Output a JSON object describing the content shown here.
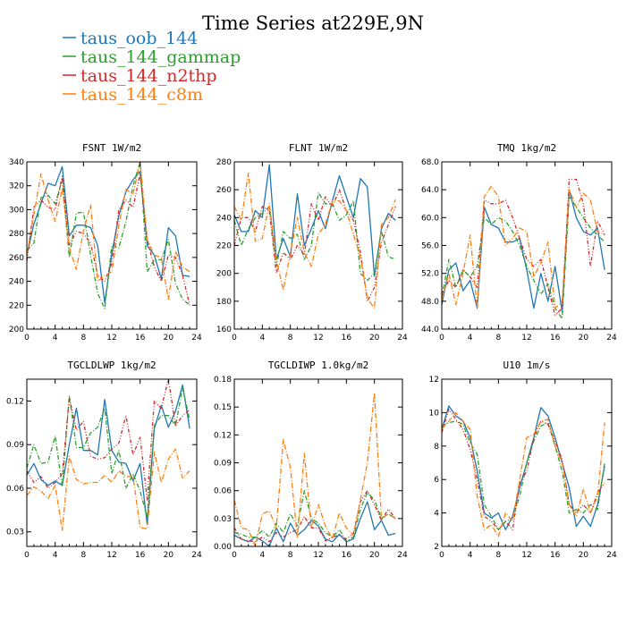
{
  "figure": {
    "title": "Time Series at229E,9N"
  },
  "legend": [
    {
      "name": "taus_oob_144",
      "color": "#1f77b4"
    },
    {
      "name": "taus_144_gammap",
      "color": "#2ca02c"
    },
    {
      "name": "taus_144_n2thp",
      "color": "#d62728"
    },
    {
      "name": "taus_144_c8m",
      "color": "#ff7f0e"
    }
  ],
  "chart_data": [
    {
      "type": "line",
      "title": "FSNT   1W/m2",
      "xlim": [
        0,
        24
      ],
      "ylim": [
        200,
        340
      ],
      "xticks": [
        0,
        4,
        8,
        12,
        16,
        20,
        24
      ],
      "yticks": [
        "200",
        "220",
        "240",
        "260",
        "280",
        "300",
        "320",
        "340"
      ],
      "x": [
        0,
        1,
        2,
        3,
        4,
        5,
        6,
        7,
        8,
        9,
        10,
        11,
        12,
        13,
        14,
        15,
        16,
        17,
        18,
        19,
        20,
        21,
        22,
        23
      ],
      "series": [
        {
          "name": "taus_oob_144",
          "values": [
            262,
            288,
            305,
            322,
            320,
            336,
            278,
            287,
            287,
            285,
            270,
            222,
            263,
            295,
            315,
            325,
            332,
            270,
            262,
            242,
            285,
            278,
            245,
            244
          ]
        },
        {
          "name": "taus_144_gammap",
          "values": [
            266,
            272,
            310,
            312,
            305,
            325,
            260,
            297,
            298,
            262,
            230,
            217,
            270,
            268,
            290,
            320,
            340,
            248,
            258,
            258,
            275,
            238,
            225,
            220
          ]
        },
        {
          "name": "taus_144_n2thp",
          "values": [
            257,
            302,
            308,
            302,
            300,
            328,
            270,
            282,
            280,
            272,
            245,
            240,
            255,
            300,
            308,
            302,
            330,
            275,
            252,
            240,
            262,
            260,
            245,
            220
          ]
        },
        {
          "name": "taus_144_c8m",
          "values": [
            262,
            296,
            330,
            308,
            290,
            318,
            268,
            250,
            282,
            304,
            240,
            245,
            248,
            287,
            317,
            313,
            340,
            275,
            262,
            260,
            225,
            265,
            252,
            248
          ]
        }
      ]
    },
    {
      "type": "line",
      "title": "FLNT   1W/m2",
      "xlim": [
        0,
        24
      ],
      "ylim": [
        160,
        280
      ],
      "xticks": [
        0,
        4,
        8,
        12,
        16,
        20,
        24
      ],
      "yticks": [
        "160",
        "180",
        "200",
        "220",
        "240",
        "260",
        "280"
      ],
      "x": [
        0,
        1,
        2,
        3,
        4,
        5,
        6,
        7,
        8,
        9,
        10,
        11,
        12,
        13,
        14,
        15,
        16,
        17,
        18,
        19,
        20,
        21,
        22,
        23
      ],
      "series": [
        {
          "name": "taus_oob_144",
          "values": [
            242,
            230,
            230,
            245,
            240,
            278,
            210,
            225,
            212,
            257,
            220,
            232,
            245,
            232,
            252,
            270,
            255,
            240,
            268,
            262,
            198,
            232,
            243,
            238
          ]
        },
        {
          "name": "taus_144_gammap",
          "values": [
            238,
            220,
            232,
            240,
            243,
            248,
            205,
            230,
            225,
            228,
            210,
            220,
            258,
            250,
            250,
            238,
            242,
            252,
            200,
            195,
            200,
            230,
            212,
            210
          ]
        },
        {
          "name": "taus_144_n2thp",
          "values": [
            220,
            240,
            240,
            230,
            248,
            245,
            200,
            215,
            210,
            220,
            213,
            250,
            238,
            255,
            248,
            260,
            245,
            238,
            215,
            180,
            190,
            222,
            235,
            248
          ]
        },
        {
          "name": "taus_144_c8m",
          "values": [
            248,
            238,
            272,
            223,
            225,
            250,
            210,
            188,
            215,
            240,
            215,
            205,
            228,
            235,
            252,
            252,
            245,
            228,
            212,
            182,
            175,
            235,
            240,
            253
          ]
        }
      ]
    },
    {
      "type": "line",
      "title": "TMQ   1kg/m2",
      "xlim": [
        0,
        24
      ],
      "ylim": [
        44,
        68
      ],
      "xticks": [
        0,
        4,
        8,
        12,
        16,
        20,
        24
      ],
      "yticks": [
        "44.0",
        "48.0",
        "52.0",
        "56.0",
        "60.0",
        "64.0",
        "68.0"
      ],
      "x": [
        0,
        1,
        2,
        3,
        4,
        5,
        6,
        7,
        8,
        9,
        10,
        11,
        12,
        13,
        14,
        15,
        16,
        17,
        18,
        19,
        20,
        21,
        22,
        23
      ],
      "series": [
        {
          "name": "taus_oob_144",
          "values": [
            47.5,
            52.5,
            53.5,
            49.5,
            51.0,
            47.0,
            61.5,
            59.0,
            58.5,
            56.5,
            56.5,
            57.0,
            52.5,
            47.0,
            52.0,
            48.0,
            53.0,
            46.5,
            64.0,
            60.0,
            58.0,
            57.5,
            58.5,
            52.5
          ]
        },
        {
          "name": "taus_144_gammap",
          "values": [
            48.5,
            54.0,
            50.0,
            52.5,
            51.5,
            53.0,
            60.0,
            59.0,
            60.0,
            59.5,
            58.0,
            56.0,
            53.0,
            51.0,
            49.0,
            50.5,
            47.0,
            45.5,
            63.0,
            61.5,
            60.0,
            58.5,
            57.5,
            56.5
          ]
        },
        {
          "name": "taus_144_n2thp",
          "values": [
            49.0,
            51.0,
            50.0,
            52.5,
            51.5,
            50.0,
            62.5,
            62.0,
            62.0,
            62.5,
            60.0,
            57.0,
            54.0,
            53.0,
            54.0,
            50.0,
            46.0,
            47.0,
            65.5,
            65.5,
            62.0,
            53.0,
            59.5,
            57.5
          ]
        },
        {
          "name": "taus_144_c8m",
          "values": [
            48.0,
            52.0,
            47.5,
            52.0,
            57.5,
            47.0,
            63.0,
            64.5,
            63.0,
            56.0,
            57.0,
            58.5,
            58.0,
            51.5,
            53.5,
            56.5,
            47.0,
            48.0,
            64.0,
            61.5,
            63.5,
            62.5,
            58.0,
            57.5
          ]
        }
      ]
    },
    {
      "type": "line",
      "title": "TGCLDLWP   1kg/m2",
      "xlim": [
        0,
        24
      ],
      "ylim": [
        0.02,
        0.135
      ],
      "xticks": [
        0,
        4,
        8,
        12,
        16,
        20,
        24
      ],
      "yticks": [
        "0.03",
        "0.06",
        "0.09",
        "0.12"
      ],
      "x": [
        0,
        1,
        2,
        3,
        4,
        5,
        6,
        7,
        8,
        9,
        10,
        11,
        12,
        13,
        14,
        15,
        16,
        17,
        18,
        19,
        20,
        21,
        22,
        23
      ],
      "series": [
        {
          "name": "taus_oob_144",
          "values": [
            0.069,
            0.077,
            0.066,
            0.062,
            0.065,
            0.062,
            0.09,
            0.115,
            0.086,
            0.086,
            0.083,
            0.121,
            0.086,
            0.078,
            0.077,
            0.065,
            0.077,
            0.035,
            0.101,
            0.117,
            0.102,
            0.113,
            0.131,
            0.101
          ]
        },
        {
          "name": "taus_144_gammap",
          "values": [
            0.074,
            0.09,
            0.077,
            0.078,
            0.096,
            0.061,
            0.124,
            0.088,
            0.088,
            0.098,
            0.102,
            0.115,
            0.07,
            0.086,
            0.06,
            0.07,
            0.058,
            0.04,
            0.103,
            0.11,
            0.11,
            0.103,
            0.129,
            0.107
          ]
        },
        {
          "name": "taus_144_n2thp",
          "values": [
            0.072,
            0.064,
            0.068,
            0.06,
            0.064,
            0.07,
            0.122,
            0.1,
            0.106,
            0.082,
            0.08,
            0.081,
            0.087,
            0.091,
            0.11,
            0.083,
            0.095,
            0.052,
            0.12,
            0.115,
            0.135,
            0.103,
            0.11,
            0.114
          ]
        },
        {
          "name": "taus_144_c8m",
          "values": [
            0.055,
            0.061,
            0.058,
            0.053,
            0.062,
            0.031,
            0.082,
            0.066,
            0.063,
            0.064,
            0.064,
            0.069,
            0.064,
            0.072,
            0.068,
            0.068,
            0.033,
            0.032,
            0.085,
            0.064,
            0.08,
            0.087,
            0.067,
            0.072
          ]
        }
      ]
    },
    {
      "type": "line",
      "title": "TGCLDIWP   1.0kg/m2",
      "xlim": [
        0,
        24
      ],
      "ylim": [
        0,
        0.18
      ],
      "xticks": [
        0,
        4,
        8,
        12,
        16,
        20,
        24
      ],
      "yticks": [
        "0.00",
        "0.03",
        "0.06",
        "0.09",
        "0.12",
        "0.15",
        "0.18"
      ],
      "x": [
        0,
        1,
        2,
        3,
        4,
        5,
        6,
        7,
        8,
        9,
        10,
        11,
        12,
        13,
        14,
        15,
        16,
        17,
        18,
        19,
        20,
        21,
        22,
        23
      ],
      "series": [
        {
          "name": "taus_oob_144",
          "values": [
            0.012,
            0.008,
            0.005,
            0.01,
            0.006,
            0.0,
            0.02,
            0.005,
            0.025,
            0.012,
            0.018,
            0.028,
            0.022,
            0.008,
            0.005,
            0.013,
            0.005,
            0.008,
            0.03,
            0.048,
            0.018,
            0.028,
            0.012,
            0.014
          ]
        },
        {
          "name": "taus_144_gammap",
          "values": [
            0.015,
            0.013,
            0.01,
            0.01,
            0.017,
            0.01,
            0.025,
            0.015,
            0.035,
            0.022,
            0.06,
            0.03,
            0.025,
            0.015,
            0.01,
            0.018,
            0.006,
            0.01,
            0.04,
            0.058,
            0.05,
            0.03,
            0.035,
            0.03
          ]
        },
        {
          "name": "taus_144_n2thp",
          "values": [
            0.02,
            0.008,
            0.006,
            0.005,
            0.01,
            0.005,
            0.015,
            0.01,
            0.015,
            0.018,
            0.032,
            0.02,
            0.02,
            0.006,
            0.01,
            0.012,
            0.008,
            0.014,
            0.048,
            0.06,
            0.045,
            0.028,
            0.04,
            0.03
          ]
        },
        {
          "name": "taus_144_c8m",
          "values": [
            0.05,
            0.02,
            0.018,
            0.0,
            0.035,
            0.038,
            0.02,
            0.115,
            0.085,
            0.01,
            0.1,
            0.02,
            0.045,
            0.022,
            0.008,
            0.036,
            0.02,
            0.012,
            0.05,
            0.09,
            0.165,
            0.03,
            0.035,
            0.03
          ]
        }
      ]
    },
    {
      "type": "line",
      "title": "U10   1m/s",
      "xlim": [
        0,
        24
      ],
      "ylim": [
        2,
        12
      ],
      "xticks": [
        0,
        4,
        8,
        12,
        16,
        20,
        24
      ],
      "yticks": [
        "2",
        "4",
        "6",
        "8",
        "10",
        "12"
      ],
      "x": [
        0,
        1,
        2,
        3,
        4,
        5,
        6,
        7,
        8,
        9,
        10,
        11,
        12,
        13,
        14,
        15,
        16,
        17,
        18,
        19,
        20,
        21,
        22,
        23
      ],
      "series": [
        {
          "name": "taus_oob_144",
          "values": [
            9.0,
            10.4,
            9.8,
            9.5,
            8.5,
            6.5,
            4.0,
            3.7,
            4.0,
            3.0,
            3.8,
            5.5,
            7.0,
            8.5,
            10.3,
            9.8,
            8.5,
            7.0,
            5.5,
            3.2,
            3.8,
            3.2,
            4.5,
            6.8
          ]
        },
        {
          "name": "taus_144_gammap",
          "values": [
            9.2,
            9.4,
            9.5,
            9.3,
            8.2,
            7.5,
            4.5,
            3.8,
            3.0,
            3.5,
            3.7,
            5.0,
            7.0,
            8.3,
            9.2,
            9.4,
            8.0,
            6.5,
            4.0,
            4.2,
            4.0,
            4.5,
            4.2,
            7.0
          ]
        },
        {
          "name": "taus_144_n2thp",
          "values": [
            8.8,
            10.2,
            9.6,
            9.0,
            7.8,
            6.0,
            3.8,
            3.5,
            3.0,
            3.5,
            3.0,
            5.8,
            6.5,
            8.5,
            9.5,
            9.3,
            8.3,
            7.2,
            4.5,
            4.0,
            4.5,
            4.0,
            5.2,
            5.8
          ]
        },
        {
          "name": "taus_144_c8m",
          "values": [
            9.0,
            9.5,
            10.0,
            9.5,
            9.0,
            5.0,
            3.0,
            3.3,
            2.6,
            4.0,
            3.5,
            6.0,
            8.5,
            8.7,
            9.5,
            9.6,
            8.0,
            7.0,
            4.5,
            3.8,
            5.4,
            4.0,
            5.0,
            9.4
          ]
        }
      ]
    }
  ]
}
